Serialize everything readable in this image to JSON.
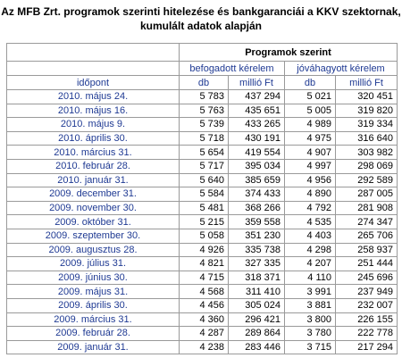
{
  "title": {
    "lines": [
      "Az MFB Zrt. programok szerinti hitelezése és bankgaranciái a KKV szektornak,",
      "kumulált adatok alapján"
    ]
  },
  "table": {
    "group_header": "Programok szerint",
    "sub_headers": [
      "befogadott kérelem",
      "jóváhagyott kérelem"
    ],
    "columns": [
      "időpont",
      "db",
      "millió Ft",
      "db",
      "millió Ft"
    ],
    "rows": [
      [
        "2010. május 24.",
        "5 783",
        "437 294",
        "5 021",
        "320 451"
      ],
      [
        "2010. május 16.",
        "5 763",
        "435 651",
        "5 005",
        "319 820"
      ],
      [
        "2010. május 9.",
        "5 739",
        "433 265",
        "4 989",
        "319 334"
      ],
      [
        "2010. április 30.",
        "5 718",
        "430 191",
        "4 975",
        "316 640"
      ],
      [
        "2010. március 31.",
        "5 654",
        "419 554",
        "4 907",
        "303 982"
      ],
      [
        "2010. február 28.",
        "5 717",
        "395 034",
        "4 997",
        "298 069"
      ],
      [
        "2010. január 31.",
        "5 640",
        "385 659",
        "4 956",
        "292 589"
      ],
      [
        "2009. december 31.",
        "5 584",
        "374 433",
        "4 890",
        "287 005"
      ],
      [
        "2009. november 30.",
        "5 481",
        "368 266",
        "4 792",
        "281 908"
      ],
      [
        "2009. október 31.",
        "5 215",
        "359 558",
        "4 535",
        "274 347"
      ],
      [
        "2009. szeptember 30.",
        "5 058",
        "351 230",
        "4 403",
        "265 706"
      ],
      [
        "2009. augusztus 28.",
        "4 926",
        "335 738",
        "4 298",
        "258 937"
      ],
      [
        "2009. július 31.",
        "4 821",
        "327 335",
        "4 207",
        "251 444"
      ],
      [
        "2009. június 30.",
        "4 715",
        "318 371",
        "4 110",
        "245 696"
      ],
      [
        "2009. május 31.",
        "4 568",
        "311 410",
        "3 991",
        "237 949"
      ],
      [
        "2009. április 30.",
        "4 456",
        "305 024",
        "3 881",
        "232 007"
      ],
      [
        "2009. március 31.",
        "4 360",
        "296 421",
        "3 800",
        "226 155"
      ],
      [
        "2009. február 28.",
        "4 287",
        "289 864",
        "3 780",
        "222 778"
      ],
      [
        "2009. január 31.",
        "4 238",
        "283 446",
        "3 715",
        "217 294"
      ]
    ]
  }
}
